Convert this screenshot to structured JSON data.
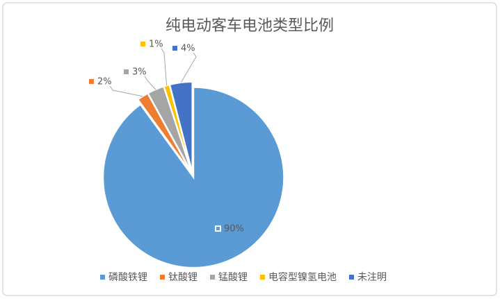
{
  "chart_data": {
    "type": "pie",
    "title": "纯电动客车电池类型比例",
    "categories": [
      "磷酸铁锂",
      "钛酸锂",
      "锰酸锂",
      "电容型镍氢电池",
      "未注明"
    ],
    "values": [
      90,
      2,
      3,
      1,
      4
    ],
    "value_labels": [
      "90%",
      "2%",
      "3%",
      "1%",
      "4%"
    ],
    "colors": [
      "#5b9bd5",
      "#ed7d31",
      "#a5a5a5",
      "#ffc000",
      "#4472c4"
    ],
    "legend": "bottom"
  }
}
